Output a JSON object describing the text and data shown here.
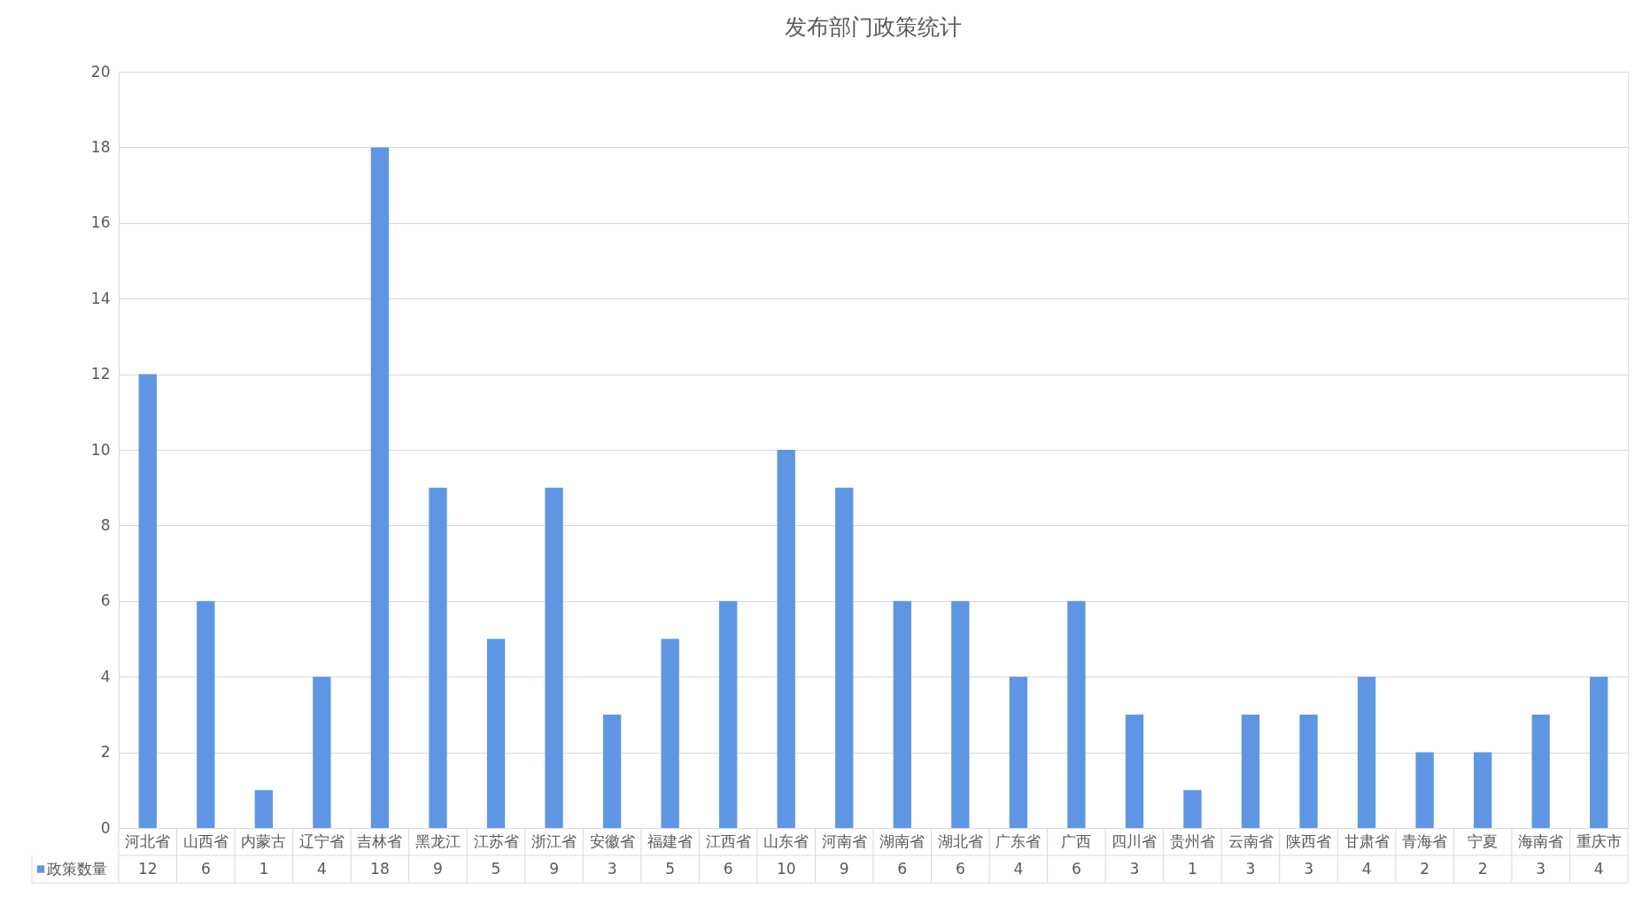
{
  "chart_data": {
    "type": "bar",
    "title": "发布部门政策统计",
    "categories": [
      "河北省",
      "山西省",
      "内蒙古",
      "辽宁省",
      "吉林省",
      "黑龙江",
      "江苏省",
      "浙江省",
      "安徽省",
      "福建省",
      "江西省",
      "山东省",
      "河南省",
      "湖南省",
      "湖北省",
      "广东省",
      "广西",
      "四川省",
      "贵州省",
      "云南省",
      "陕西省",
      "甘肃省",
      "青海省",
      "宁夏",
      "海南省",
      "重庆市"
    ],
    "series": [
      {
        "name": "政策数量",
        "color": "#5e96e3",
        "values": [
          12,
          6,
          1,
          4,
          18,
          9,
          5,
          9,
          3,
          5,
          6,
          10,
          9,
          6,
          6,
          4,
          6,
          3,
          1,
          3,
          3,
          4,
          2,
          2,
          3,
          4
        ]
      }
    ],
    "ylim": [
      0,
      20
    ],
    "yticks": [
      0,
      2,
      4,
      6,
      8,
      10,
      12,
      14,
      16,
      18,
      20
    ],
    "grid": "y",
    "legend": "bottom left",
    "data_labels": true
  }
}
